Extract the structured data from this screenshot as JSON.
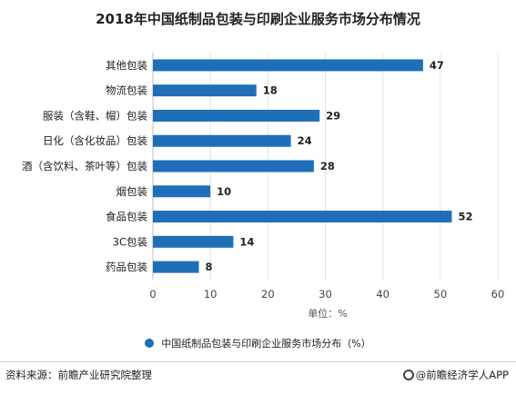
{
  "title": "2018年中国纸制品包装与印刷企业服务市场分布情况",
  "legend": {
    "label": "中国纸制品包装与印刷企业服务市场分布（%）"
  },
  "footer": {
    "source": "资料来源：前瞻产业研究院整理",
    "brand": "@前瞻经济学人APP"
  },
  "colors": {
    "bar": "#1e6fb8",
    "grid": "#e3e3e3",
    "text": "#333333"
  },
  "chart_data": {
    "type": "bar",
    "orientation": "horizontal",
    "categories": [
      "其他包装",
      "物流包装",
      "服装（含鞋、帽）包装",
      "日化（含化妆品）包装",
      "酒（含饮料、茶叶等）包装",
      "烟包装",
      "食品包装",
      "3C包装",
      "药品包装"
    ],
    "series": [
      {
        "name": "中国纸制品包装与印刷企业服务市场分布（%）",
        "values": [
          47,
          18,
          29,
          24,
          28,
          10,
          52,
          14,
          8
        ]
      }
    ],
    "xlabel": "单位：%",
    "xlim": [
      0,
      60
    ],
    "xticks": [
      0,
      10,
      20,
      30,
      40,
      50,
      60
    ],
    "grid": true,
    "legend_position": "bottom"
  }
}
